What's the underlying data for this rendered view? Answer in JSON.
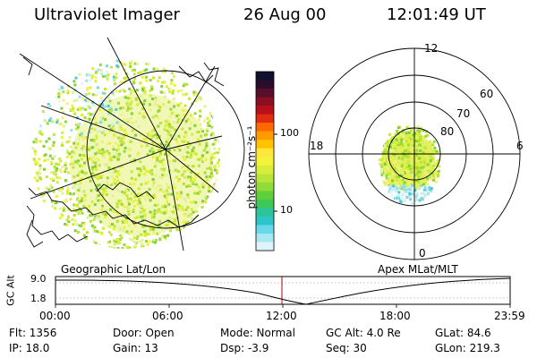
{
  "header": {
    "instrument": "Ultraviolet Imager",
    "date": "26 Aug 00",
    "time": "12:01:49 UT"
  },
  "colorbar": {
    "unit_label": "photon cm⁻²s⁻¹",
    "ticks": [
      "100",
      "10"
    ],
    "colors": [
      "#101030",
      "#2a0d2a",
      "#5a0e2a",
      "#8a0f22",
      "#b8101a",
      "#e22b10",
      "#ff6a00",
      "#ff9a00",
      "#ffc400",
      "#ffe63a",
      "#f5f23a",
      "#d9ee3a",
      "#b8e63a",
      "#8fdc3a",
      "#5fd03a",
      "#3ec85a",
      "#2ec39a",
      "#2ec5c8",
      "#66d8ea",
      "#a6e8f2",
      "#dff4f8"
    ]
  },
  "left_panel": {
    "caption": "Geographic Lat/Lon"
  },
  "right_panel": {
    "caption": "Apex MLat/MLT",
    "mlt_labels": {
      "top": "12",
      "left": "18",
      "right": "6",
      "bottom": "0"
    },
    "lat_labels": [
      "60",
      "70",
      "80"
    ]
  },
  "timeline": {
    "y_axis_label": "GC Alt",
    "y_ticks": [
      "9.0",
      "1.8"
    ],
    "x_ticks": [
      "00:00",
      "06:00",
      "12:00",
      "18:00",
      "23:59"
    ],
    "marker_time": "12:01"
  },
  "footer": {
    "row1": {
      "flt": "Flt: 1356",
      "door": "Door: Open",
      "mode": "Mode: Normal",
      "gc_alt": "GC Alt: 4.0 Re",
      "glat": "GLat:  84.6"
    },
    "row2": {
      "ip": "IP: 18.0",
      "gain": "Gain: 13",
      "dsp": "Dsp:   -3.9",
      "seq": "Seq: 30",
      "glon": "GLon: 219.3"
    }
  }
}
